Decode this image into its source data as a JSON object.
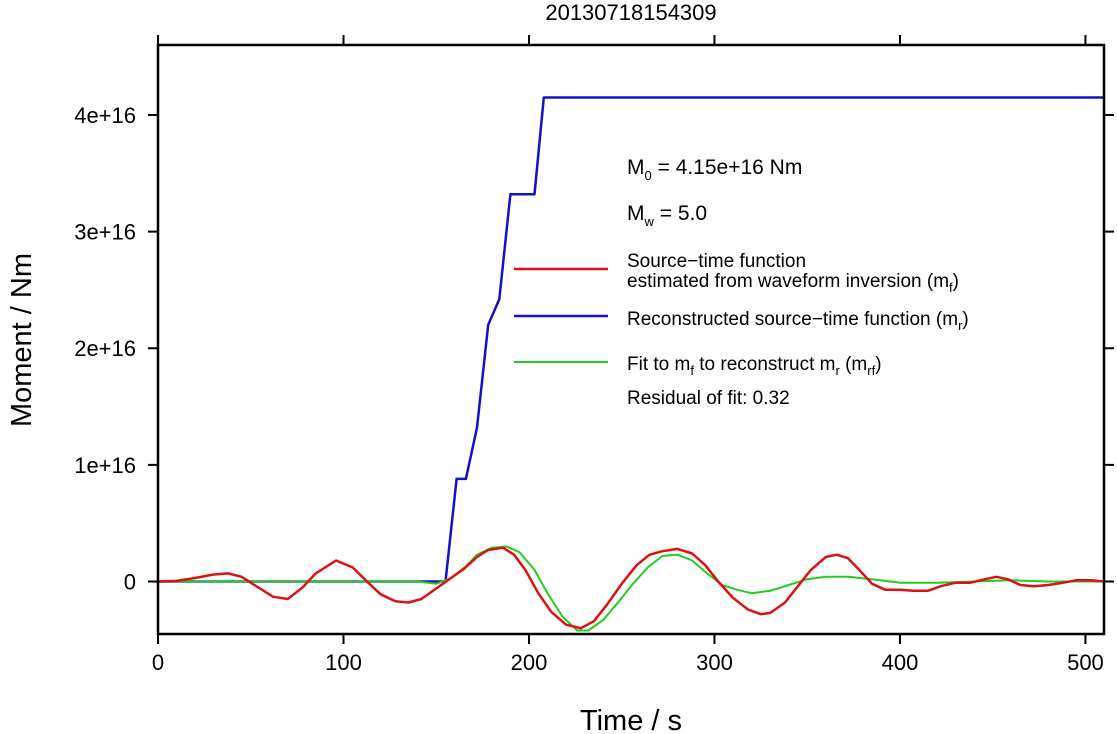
{
  "chart_data": {
    "type": "line",
    "title": "20130718154309",
    "xlabel": "Time / s",
    "ylabel": "Moment / Nm",
    "xlim": [
      0,
      510
    ],
    "ylim": [
      -4500000000000000.0,
      4.6e+16
    ],
    "xticks": [
      0,
      100,
      200,
      300,
      400,
      500
    ],
    "xtick_labels": [
      "0",
      "100",
      "200",
      "300",
      "400",
      "500"
    ],
    "yticks": [
      0,
      1e+16,
      2e+16,
      3e+16,
      4e+16
    ],
    "ytick_labels": [
      "0",
      "1e+16",
      "2e+16",
      "3e+16",
      "4e+16"
    ],
    "grid": false,
    "annotations": {
      "m0": {
        "main": "M",
        "sub": "0",
        "rest": " = 4.15e+16 Nm"
      },
      "mw": {
        "main": "M",
        "sub": "w",
        "rest": " = 5.0"
      },
      "residual": "Residual of fit: 0.32"
    },
    "legend": {
      "position": "right",
      "entries": [
        {
          "line1": "Source−time function",
          "line2_pre": "estimated from waveform inversion (m",
          "line2_sub": "f",
          "line2_post": ")"
        },
        {
          "pre": "Reconstructed source−time function (m",
          "sub": "r",
          "post": ")"
        },
        {
          "pre": "Fit to m",
          "sub1": "f",
          "mid": " to reconstruct m",
          "sub2": "r",
          "mid2": " (m",
          "sub3": "rf",
          "post": ")"
        }
      ]
    },
    "series": [
      {
        "name": "Source−time function estimated from waveform inversion (mf)",
        "color": "#dd1111",
        "x": [
          0,
          10,
          20,
          30,
          38,
          45,
          55,
          62,
          70,
          78,
          85,
          96,
          105,
          112,
          120,
          128,
          135,
          142,
          150,
          158,
          165,
          172,
          178,
          186,
          192,
          198,
          205,
          212,
          220,
          228,
          235,
          242,
          250,
          258,
          265,
          272,
          280,
          288,
          295,
          302,
          310,
          318,
          325,
          330,
          338,
          345,
          352,
          360,
          366,
          372,
          378,
          385,
          392,
          400,
          407,
          415,
          422,
          430,
          438,
          446,
          452,
          458,
          465,
          472,
          480,
          488,
          495,
          503,
          510
        ],
        "y": [
          0,
          50000000000000.0,
          300000000000000.0,
          600000000000000.0,
          700000000000000.0,
          400000000000000.0,
          -600000000000000.0,
          -1300000000000000.0,
          -1500000000000000.0,
          -500000000000000.0,
          700000000000000.0,
          1800000000000000.0,
          1200000000000000.0,
          100000000000000.0,
          -1100000000000000.0,
          -1700000000000000.0,
          -1800000000000000.0,
          -1500000000000000.0,
          -600000000000000.0,
          300000000000000.0,
          1100000000000000.0,
          2100000000000000.0,
          2700000000000000.0,
          2900000000000000.0,
          2300000000000000.0,
          1000000000000000.0,
          -1000000000000000.0,
          -2600000000000000.0,
          -3700000000000000.0,
          -4000000000000000.0,
          -3400000000000000.0,
          -2000000000000000.0,
          -200000000000000.0,
          1400000000000000.0,
          2300000000000000.0,
          2600000000000000.0,
          2800000000000000.0,
          2400000000000000.0,
          1400000000000000.0,
          0,
          -1400000000000000.0,
          -2400000000000000.0,
          -2800000000000000.0,
          -2700000000000000.0,
          -1800000000000000.0,
          -400000000000000.0,
          1000000000000000.0,
          2100000000000000.0,
          2300000000000000.0,
          2000000000000000.0,
          1000000000000000.0,
          -200000000000000.0,
          -700000000000000.0,
          -700000000000000.0,
          -800000000000000.0,
          -800000000000000.0,
          -400000000000000.0,
          -100000000000000.0,
          -100000000000000.0,
          200000000000000.0,
          400000000000000.0,
          200000000000000.0,
          -300000000000000.0,
          -400000000000000.0,
          -300000000000000.0,
          -100000000000000.0,
          100000000000000.0,
          100000000000000.0,
          0
        ]
      },
      {
        "name": "Reconstructed source−time function (mr)",
        "color": "#1111cc",
        "x": [
          0,
          155,
          161,
          166,
          172,
          178,
          184,
          190,
          198,
          203,
          208,
          510
        ],
        "y": [
          0,
          0,
          8800000000000000.0,
          8800000000000000.0,
          1.32e+16,
          2.2e+16,
          2.42e+16,
          3.32e+16,
          3.32e+16,
          3.32e+16,
          4.15e+16,
          4.15e+16
        ]
      },
      {
        "name": "Fit to mf to reconstruct mr (mrf)",
        "color": "#22cc22",
        "x": [
          0,
          140,
          150,
          158,
          166,
          172,
          180,
          188,
          195,
          203,
          210,
          218,
          226,
          232,
          240,
          248,
          256,
          264,
          272,
          280,
          288,
          296,
          304,
          312,
          320,
          330,
          340,
          350,
          360,
          372,
          385,
          400,
          420,
          440,
          460,
          480,
          500,
          510
        ],
        "y": [
          0,
          0,
          -200000000000000.0,
          300000000000000.0,
          1300000000000000.0,
          2300000000000000.0,
          2900000000000000.0,
          3000000000000000.0,
          2500000000000000.0,
          1000000000000000.0,
          -1000000000000000.0,
          -3000000000000000.0,
          -4200000000000000.0,
          -4200000000000000.0,
          -3300000000000000.0,
          -1800000000000000.0,
          -200000000000000.0,
          1200000000000000.0,
          2200000000000000.0,
          2300000000000000.0,
          1800000000000000.0,
          700000000000000.0,
          -300000000000000.0,
          -700000000000000.0,
          -1000000000000000.0,
          -800000000000000.0,
          -300000000000000.0,
          200000000000000.0,
          400000000000000.0,
          400000000000000.0,
          200000000000000.0,
          -100000000000000.0,
          -100000000000000.0,
          0,
          100000000000000.0,
          0,
          0,
          0
        ]
      }
    ]
  }
}
